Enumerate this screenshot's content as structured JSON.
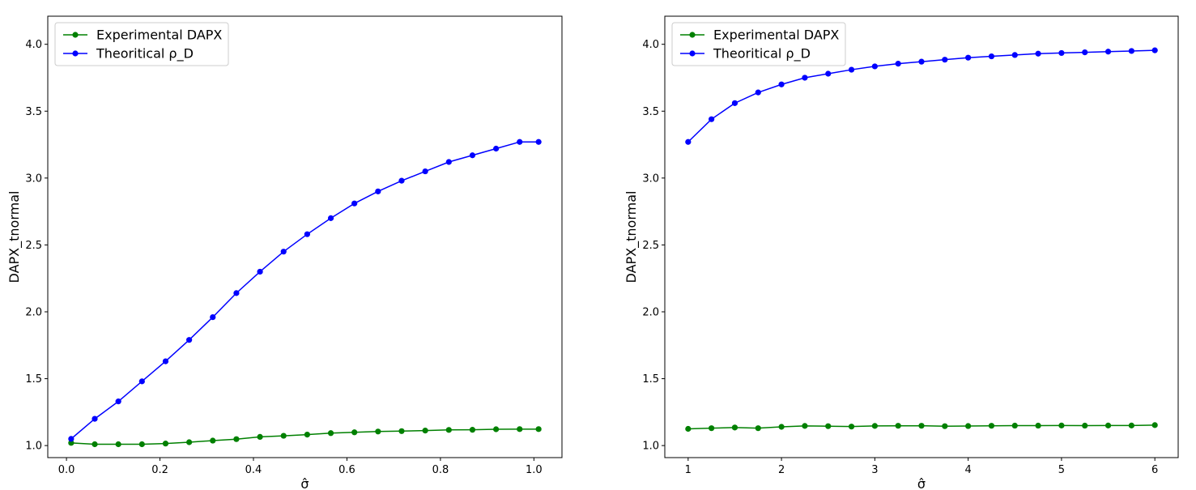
{
  "colors": {
    "experimental": "#008000",
    "theoretical": "#0000ff",
    "axes": "#000000",
    "legend_border": "#cccccc"
  },
  "chart_data": [
    {
      "type": "line",
      "xlabel": "σ̂",
      "ylabel": "DAPX_tnormal",
      "xlim": [
        -0.04,
        1.06
      ],
      "ylim": [
        0.91,
        4.21
      ],
      "xticks": [
        0.0,
        0.2,
        0.4,
        0.6,
        0.8,
        1.0
      ],
      "xtick_labels": [
        "0.0",
        "0.2",
        "0.4",
        "0.6",
        "0.8",
        "1.0"
      ],
      "yticks": [
        1.0,
        1.5,
        2.0,
        2.5,
        3.0,
        3.5,
        4.0
      ],
      "ytick_labels": [
        "1.0",
        "1.5",
        "2.0",
        "2.5",
        "3.0",
        "3.5",
        "4.0"
      ],
      "grid": false,
      "legend_position": "upper-left",
      "x": [
        0.01,
        0.0605,
        0.111,
        0.1615,
        0.212,
        0.2625,
        0.313,
        0.3635,
        0.414,
        0.4645,
        0.515,
        0.5655,
        0.616,
        0.6665,
        0.717,
        0.7675,
        0.818,
        0.8685,
        0.919,
        0.9695,
        1.01
      ],
      "series": [
        {
          "name": "Experimental DAPX",
          "color_key": "experimental",
          "values": [
            1.02,
            1.01,
            1.01,
            1.01,
            1.015,
            1.025,
            1.037,
            1.048,
            1.065,
            1.073,
            1.082,
            1.093,
            1.099,
            1.105,
            1.108,
            1.112,
            1.117,
            1.118,
            1.122,
            1.123,
            1.123
          ]
        },
        {
          "name": "Theoritical ρ_D",
          "color_key": "theoretical",
          "values": [
            1.05,
            1.2,
            1.33,
            1.48,
            1.63,
            1.79,
            1.96,
            2.14,
            2.3,
            2.45,
            2.58,
            2.7,
            2.81,
            2.9,
            2.98,
            3.05,
            3.12,
            3.17,
            3.22,
            3.27,
            3.27
          ]
        }
      ]
    },
    {
      "type": "line",
      "xlabel": "σ̂",
      "ylabel": "DAPX_tnormal",
      "xlim": [
        0.75,
        6.25
      ],
      "ylim": [
        0.91,
        4.21
      ],
      "xticks": [
        1,
        2,
        3,
        4,
        5,
        6
      ],
      "xtick_labels": [
        "1",
        "2",
        "3",
        "4",
        "5",
        "6"
      ],
      "yticks": [
        1.0,
        1.5,
        2.0,
        2.5,
        3.0,
        3.5,
        4.0
      ],
      "ytick_labels": [
        "1.0",
        "1.5",
        "2.0",
        "2.5",
        "3.0",
        "3.5",
        "4.0"
      ],
      "grid": false,
      "legend_position": "upper-left",
      "x": [
        1.0,
        1.25,
        1.5,
        1.75,
        2.0,
        2.25,
        2.5,
        2.75,
        3.0,
        3.25,
        3.5,
        3.75,
        4.0,
        4.25,
        4.5,
        4.75,
        5.0,
        5.25,
        5.5,
        5.75,
        6.0
      ],
      "series": [
        {
          "name": "Experimental DAPX",
          "color_key": "experimental",
          "values": [
            1.125,
            1.13,
            1.135,
            1.13,
            1.14,
            1.147,
            1.145,
            1.142,
            1.147,
            1.148,
            1.148,
            1.145,
            1.146,
            1.148,
            1.149,
            1.149,
            1.15,
            1.149,
            1.15,
            1.15,
            1.153
          ]
        },
        {
          "name": "Theoritical ρ_D",
          "color_key": "theoretical",
          "values": [
            3.27,
            3.44,
            3.56,
            3.64,
            3.7,
            3.75,
            3.78,
            3.81,
            3.835,
            3.855,
            3.87,
            3.885,
            3.9,
            3.91,
            3.92,
            3.93,
            3.935,
            3.94,
            3.945,
            3.95,
            3.955
          ]
        }
      ]
    }
  ]
}
